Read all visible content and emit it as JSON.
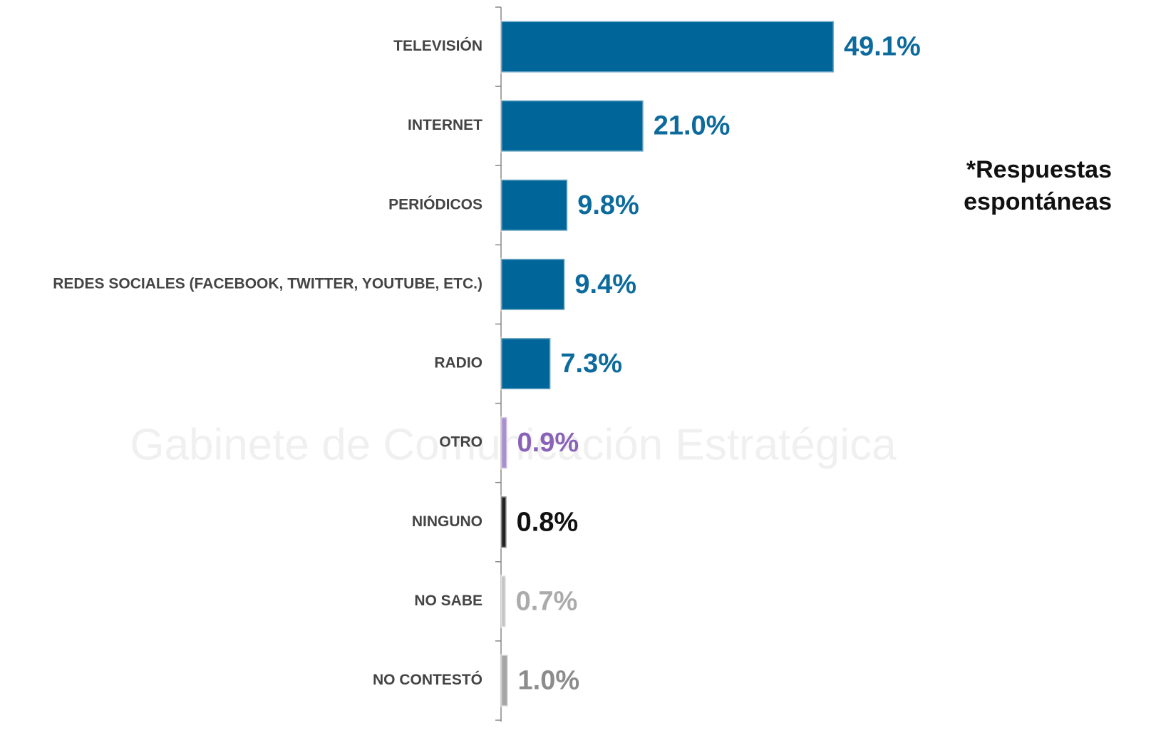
{
  "chart_data": {
    "type": "barh",
    "categories": [
      "TELEVISIÓN",
      "INTERNET",
      "PERIÓDICOS",
      "REDES SOCIALES (FACEBOOK, TWITTER, YOUTUBE, ETC.)",
      "RADIO",
      "OTRO",
      "NINGUNO",
      "NO SABE",
      "NO CONTESTÓ"
    ],
    "values": [
      49.1,
      21.0,
      9.8,
      9.4,
      7.3,
      0.9,
      0.8,
      0.7,
      1.0
    ],
    "value_labels": [
      "49.1%",
      "21.0%",
      "9.8%",
      "9.4%",
      "7.3%",
      "0.9%",
      "0.8%",
      "0.7%",
      "1.0%"
    ],
    "colors": [
      "#006699",
      "#006699",
      "#006699",
      "#006699",
      "#006699",
      "#a98fd0",
      "#222222",
      "#c4c4c4",
      "#a6a6a6"
    ],
    "label_colors": [
      "#0c6b9c",
      "#0c6b9c",
      "#0c6b9c",
      "#0c6b9c",
      "#0c6b9c",
      "#8a63b8",
      "#111111",
      "#ababab",
      "#8c8c8c"
    ],
    "xlim": [
      0,
      90
    ],
    "annotation": [
      "*Respuestas",
      "espontáneas"
    ],
    "watermark": "Gabinete de Comunicación Estratégica"
  }
}
